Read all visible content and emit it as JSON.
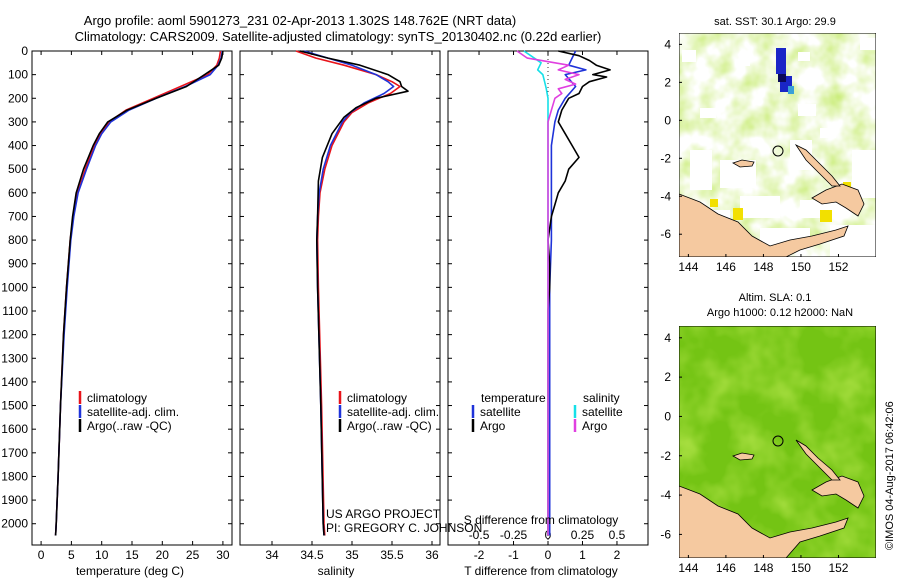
{
  "header": {
    "line1": "Argo profile: aoml 5901273_231 02-Apr-2013 1.302S 148.762E (NRT data)",
    "line2": "Climatology: CARS2009. Satellite-adjusted climatology: synTS_20130402.nc (0.22d earlier)"
  },
  "project": {
    "line1": "US ARGO PROJECT",
    "line2": "PI: GREGORY C. JOHNSON"
  },
  "stamp": "©IMOS 04-Aug-2017 06:42:06",
  "colors": {
    "clim": "#e8131a",
    "sat": "#1f33d9",
    "argo": "#000000",
    "sat_s": "#16e0e8",
    "argo_s": "#e040e0",
    "land": "#f5c9a0"
  },
  "chart_data": [
    {
      "type": "line",
      "id": "temperature",
      "xlabel": "temperature (deg C)",
      "ylabel": "",
      "xlim": [
        -1.5,
        31.5
      ],
      "ylim": [
        2090,
        0
      ],
      "xticks": [
        0,
        5,
        10,
        15,
        20,
        25,
        30
      ],
      "yticks": [
        0,
        100,
        200,
        300,
        400,
        500,
        600,
        700,
        800,
        900,
        1000,
        1100,
        1200,
        1300,
        1400,
        1500,
        1600,
        1700,
        1800,
        1900,
        2000
      ],
      "legend": [
        "climatology",
        "satellite-adj. clim.",
        "Argo(..raw -QC)"
      ],
      "series": [
        {
          "name": "climatology",
          "color": "#e8131a",
          "depth": [
            0,
            30,
            60,
            100,
            150,
            200,
            250,
            300,
            350,
            400,
            500,
            600,
            700,
            800,
            1000,
            1200,
            1500,
            1800,
            2000,
            2050
          ],
          "values": [
            29.6,
            29.4,
            29.0,
            27.5,
            23.0,
            18.5,
            14.0,
            11.2,
            9.8,
            8.8,
            7.3,
            6.0,
            5.3,
            4.8,
            4.2,
            3.7,
            3.2,
            2.8,
            2.5,
            2.4
          ]
        },
        {
          "name": "satellite-adj. clim.",
          "color": "#1f33d9",
          "depth": [
            0,
            30,
            60,
            100,
            150,
            200,
            250,
            300,
            350,
            400,
            500,
            600,
            700,
            800,
            1000,
            1200,
            1500,
            1800,
            2000,
            2050
          ],
          "values": [
            29.9,
            29.7,
            29.2,
            27.9,
            23.8,
            19.0,
            14.5,
            11.5,
            10.0,
            9.0,
            7.5,
            6.1,
            5.4,
            4.9,
            4.3,
            3.8,
            3.2,
            2.8,
            2.5,
            2.4
          ]
        },
        {
          "name": "Argo(..raw -QC)",
          "color": "#000000",
          "depth": [
            0,
            30,
            60,
            100,
            150,
            200,
            250,
            300,
            350,
            400,
            500,
            600,
            700,
            800,
            1000,
            1200,
            1500,
            1800,
            2000,
            2050
          ],
          "values": [
            30.0,
            29.8,
            29.3,
            27.0,
            24.0,
            19.0,
            14.2,
            11.0,
            9.6,
            8.6,
            7.0,
            5.8,
            5.2,
            4.8,
            4.2,
            3.7,
            3.2,
            2.8,
            2.5,
            2.4
          ]
        }
      ]
    },
    {
      "type": "line",
      "id": "salinity",
      "xlabel": "salinity",
      "ylabel": "",
      "xlim": [
        33.6,
        36.1
      ],
      "ylim": [
        2090,
        0
      ],
      "xticks": [
        34,
        34.5,
        35,
        35.5,
        36
      ],
      "legend": [
        "climatology",
        "satellite-adj. clim.",
        "Argo(..raw -QC)"
      ],
      "series": [
        {
          "name": "climatology",
          "color": "#e8131a",
          "depth": [
            0,
            30,
            60,
            100,
            130,
            150,
            180,
            220,
            260,
            300,
            400,
            500,
            600,
            700,
            800,
            1000,
            1500,
            2000,
            2050
          ],
          "values": [
            34.3,
            34.55,
            34.9,
            35.3,
            35.5,
            35.6,
            35.48,
            35.2,
            35.0,
            34.9,
            34.75,
            34.66,
            34.6,
            34.58,
            34.57,
            34.58,
            34.62,
            34.65,
            34.66
          ]
        },
        {
          "name": "satellite-adj. clim.",
          "color": "#1f33d9",
          "depth": [
            0,
            30,
            60,
            100,
            130,
            150,
            180,
            220,
            260,
            300,
            400,
            500,
            600,
            700,
            800,
            1000,
            1500,
            2000,
            2050
          ],
          "values": [
            34.4,
            34.7,
            35.0,
            35.3,
            35.45,
            35.52,
            35.4,
            35.15,
            34.98,
            34.88,
            34.73,
            34.64,
            34.59,
            34.57,
            34.56,
            34.57,
            34.61,
            34.64,
            34.65
          ]
        },
        {
          "name": "Argo(..raw -QC)",
          "color": "#000000",
          "depth": [
            0,
            30,
            60,
            100,
            130,
            150,
            170,
            200,
            240,
            280,
            350,
            450,
            550,
            700,
            800,
            1000,
            1500,
            2000,
            2050
          ],
          "values": [
            34.35,
            34.7,
            35.1,
            35.45,
            35.6,
            35.62,
            35.7,
            35.3,
            35.05,
            34.9,
            34.75,
            34.63,
            34.58,
            34.57,
            34.56,
            34.57,
            34.61,
            34.64,
            34.65
          ]
        }
      ]
    },
    {
      "type": "line",
      "id": "difference",
      "xlabel": "T difference from climatology",
      "xlabel2": "S difference from climatology",
      "xlim": [
        -2.9,
        2.9
      ],
      "ylim": [
        2090,
        0
      ],
      "xticks": [
        -2,
        -1,
        0,
        1,
        2
      ],
      "xticks_s_labels": [
        "-0.5",
        "-0.25",
        "0",
        "0.25",
        "0.5"
      ],
      "legend_titles": [
        "temperature",
        "salinity"
      ],
      "legend": [
        "satellite",
        "Argo",
        "satellite",
        "Argo"
      ],
      "series": [
        {
          "name": "temperature satellite",
          "color": "#1f33d9",
          "depth": [
            0,
            30,
            60,
            80,
            100,
            150,
            200,
            250,
            300,
            400,
            600,
            800,
            1000,
            1500,
            2000,
            2050
          ],
          "values": [
            0.8,
            0.7,
            0.6,
            1.1,
            0.5,
            0.8,
            0.5,
            0.3,
            0.2,
            0.1,
            0.1,
            0.1,
            0.05,
            0.05,
            0.05,
            0.05
          ]
        },
        {
          "name": "temperature Argo",
          "color": "#000000",
          "depth": [
            0,
            20,
            40,
            60,
            80,
            100,
            110,
            130,
            150,
            180,
            200,
            250,
            300,
            350,
            400,
            450,
            500,
            550,
            600,
            650,
            700,
            800,
            900,
            1000,
            1100,
            1200,
            1500,
            2000,
            2050
          ],
          "values": [
            0.3,
            0.9,
            1.2,
            1.4,
            1.8,
            1.3,
            1.7,
            1.2,
            1.0,
            0.9,
            0.6,
            0.4,
            0.3,
            0.5,
            0.7,
            0.9,
            0.6,
            0.5,
            0.3,
            0.2,
            0.1,
            0.0,
            0.05,
            0.05,
            0.0,
            0.0,
            0.0,
            0.0,
            0.0
          ]
        },
        {
          "name": "salinity satellite",
          "color": "#16e0e8",
          "depth": [
            0,
            20,
            50,
            80,
            100,
            130,
            160,
            200,
            250,
            300,
            400,
            600,
            1000,
            1500,
            2000,
            2050
          ],
          "values": [
            -0.7,
            -0.5,
            -0.2,
            -0.3,
            -0.15,
            -0.1,
            -0.05,
            0.0,
            0.0,
            0.0,
            0.0,
            0.0,
            0.0,
            0.0,
            0.0,
            0.0
          ]
        },
        {
          "name": "salinity Argo",
          "color": "#e040e0",
          "depth": [
            0,
            30,
            60,
            80,
            100,
            120,
            140,
            160,
            180,
            200,
            250,
            300,
            400,
            600,
            1000,
            1500,
            2000,
            2050
          ],
          "values": [
            -0.9,
            -0.6,
            0.6,
            0.3,
            0.9,
            0.5,
            0.8,
            0.3,
            0.4,
            0.2,
            0.1,
            0.0,
            0.0,
            0.0,
            0.0,
            0.0,
            0.0,
            0.0
          ]
        }
      ]
    },
    {
      "type": "heatmap",
      "id": "sst-map",
      "title": "sat. SST: 30.1 Argo: 29.9",
      "xlim": [
        143.5,
        154
      ],
      "ylim": [
        -7.2,
        4.6
      ],
      "xticks": [
        144,
        146,
        148,
        150,
        152
      ],
      "yticks": [
        -6,
        -4,
        -2,
        0,
        2,
        4
      ],
      "marker": {
        "lon": 148.762,
        "lat": -1.302
      }
    },
    {
      "type": "heatmap",
      "id": "sla-map",
      "title": "Altim. SLA: 0.1",
      "subtitle": "Argo h1000: 0.12 h2000: NaN",
      "xlim": [
        143.5,
        154
      ],
      "ylim": [
        -7.2,
        4.6
      ],
      "xticks": [
        144,
        146,
        148,
        150,
        152
      ],
      "yticks": [
        -6,
        -4,
        -2,
        0,
        2,
        4
      ],
      "marker": {
        "lon": 148.762,
        "lat": -1.302
      }
    }
  ]
}
